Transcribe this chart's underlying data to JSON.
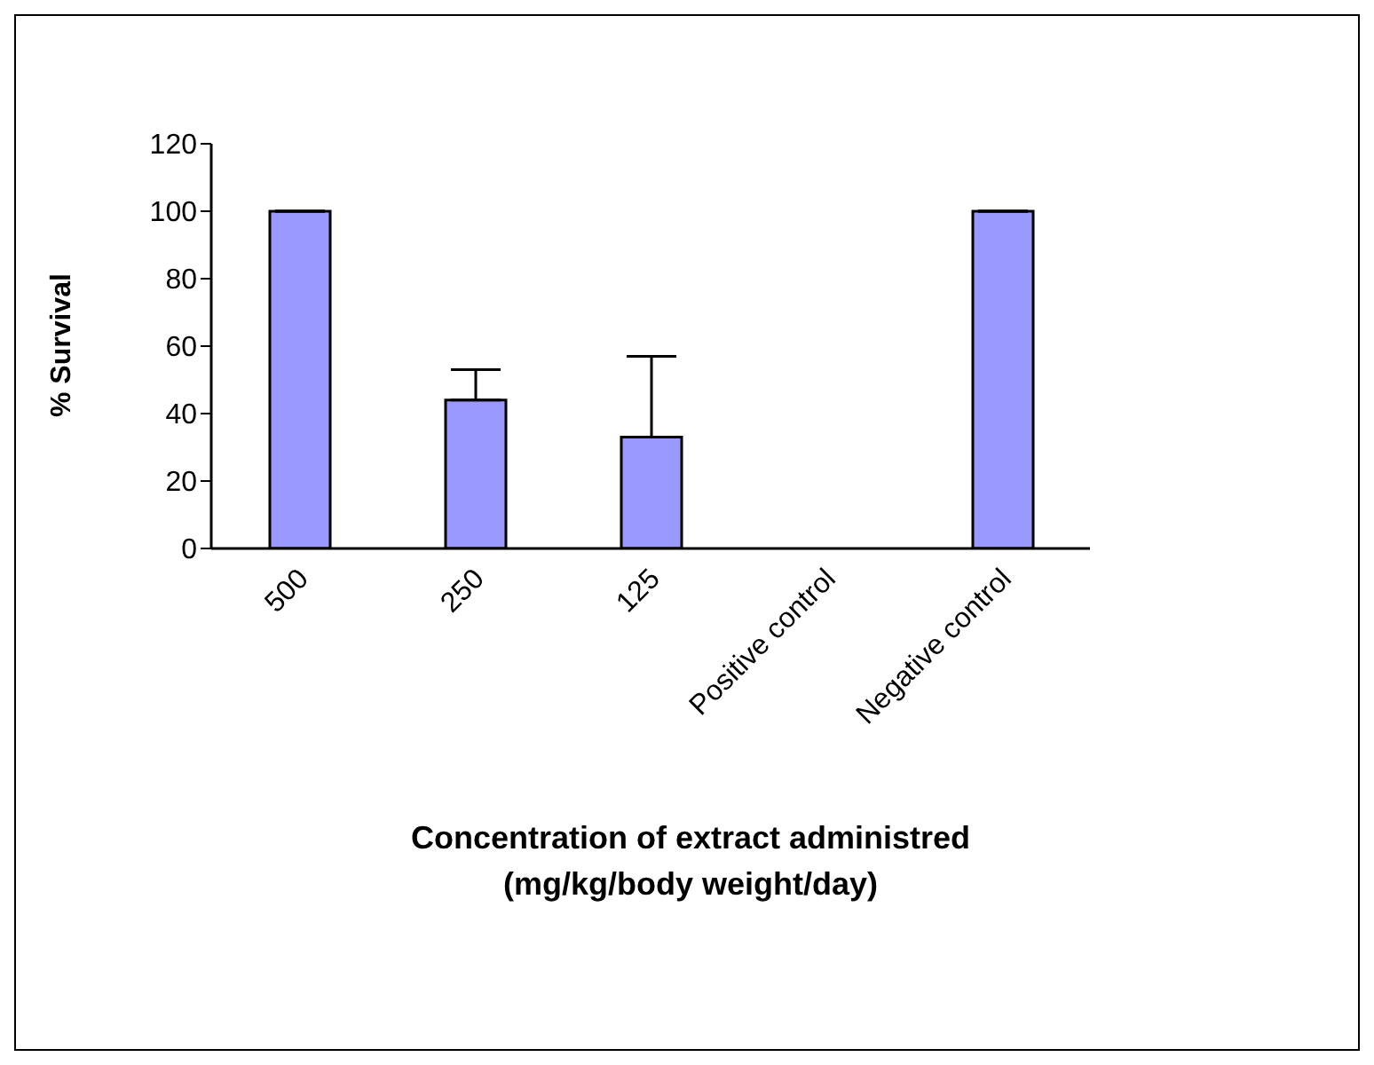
{
  "chart_data": {
    "type": "bar",
    "ylabel": "% Survival",
    "xlabel": "Concentration of extract administred\n(mg/kg/body weight/day)",
    "categories": [
      "500",
      "250",
      "125",
      "Positive control",
      "Negative control"
    ],
    "values": [
      100,
      44,
      33,
      0,
      100
    ],
    "errors": [
      null,
      [
        44,
        53
      ],
      [
        33,
        57
      ],
      null,
      null
    ],
    "color": "#9999ff",
    "ylim": [
      0,
      120
    ],
    "yticks": [
      0,
      20,
      40,
      60,
      80,
      100,
      120
    ],
    "grid": false,
    "legend": false
  }
}
